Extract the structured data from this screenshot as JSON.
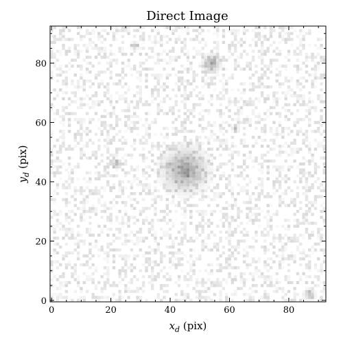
{
  "chart_data": {
    "type": "heatmap",
    "title": "Direct Image",
    "xlabel": {
      "main": "x",
      "sub": "d",
      "unit": " (pix)"
    },
    "ylabel": {
      "main": "y",
      "sub": "d",
      "unit": " (pix)"
    },
    "xlim": [
      -0.5,
      92.5
    ],
    "ylim": [
      -0.5,
      92.5
    ],
    "grid_size": [
      93,
      93
    ],
    "x_ticks": [
      0,
      20,
      40,
      60,
      80
    ],
    "y_ticks": [
      0,
      20,
      40,
      60,
      80
    ],
    "colormap": "gray_r",
    "grid": false,
    "sources": [
      {
        "x": 45,
        "y": 44,
        "sigma": 4.2,
        "amplitude": 0.55
      },
      {
        "x": 54,
        "y": 80,
        "sigma": 1.8,
        "amplitude": 0.45
      },
      {
        "x": 22,
        "y": 46,
        "sigma": 0.9,
        "amplitude": 0.55
      },
      {
        "x": 87,
        "y": 2,
        "sigma": 1.2,
        "amplitude": 0.35
      },
      {
        "x": 28,
        "y": 86,
        "sigma": 0.8,
        "amplitude": 0.3
      },
      {
        "x": 62,
        "y": 58,
        "sigma": 0.8,
        "amplitude": 0.25
      }
    ]
  }
}
